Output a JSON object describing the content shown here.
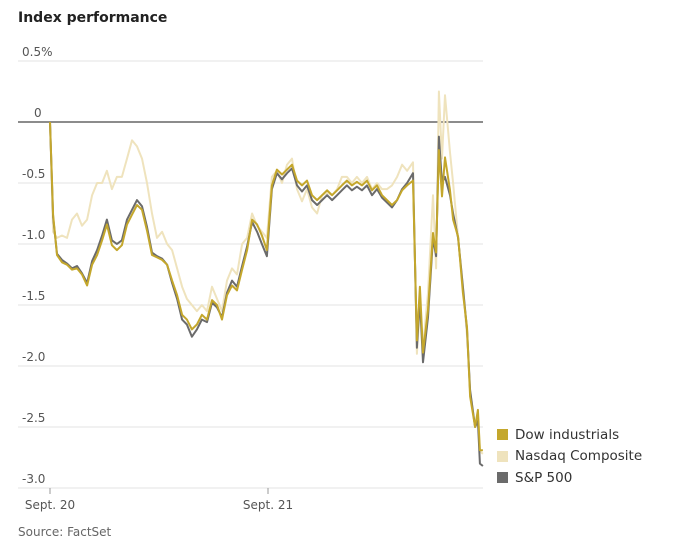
{
  "title": "Index performance",
  "source": "Source: FactSet",
  "chart_data": {
    "type": "line",
    "title": "Index performance",
    "xlabel": "",
    "ylabel": "",
    "x_unit": "trading days since Sept. 20 open",
    "x_ticks": [
      {
        "value": 0,
        "label": "Sept. 20"
      },
      {
        "value": 1,
        "label": "Sept. 21"
      }
    ],
    "y_ticks": [
      {
        "value": 0.5,
        "label": "0.5%"
      },
      {
        "value": 0,
        "label": "0"
      },
      {
        "value": -0.5,
        "label": "-0.5"
      },
      {
        "value": -1.0,
        "label": "-1.0"
      },
      {
        "value": -1.5,
        "label": "-1.5"
      },
      {
        "value": -2.0,
        "label": "-2.0"
      },
      {
        "value": -2.5,
        "label": "-2.5"
      },
      {
        "value": -3.0,
        "label": "-3.0"
      }
    ],
    "ylim": [
      -3.0,
      0.5
    ],
    "xlim": [
      -0.147,
      1.986
    ],
    "grid": true,
    "legend": "bottom-right",
    "x": [
      0,
      0.014,
      0.032,
      0.055,
      0.078,
      0.101,
      0.124,
      0.147,
      0.17,
      0.193,
      0.216,
      0.239,
      0.261,
      0.284,
      0.307,
      0.33,
      0.353,
      0.376,
      0.399,
      0.422,
      0.445,
      0.468,
      0.491,
      0.514,
      0.537,
      0.56,
      0.583,
      0.606,
      0.628,
      0.651,
      0.674,
      0.697,
      0.72,
      0.743,
      0.766,
      0.789,
      0.812,
      0.835,
      0.858,
      0.881,
      0.904,
      0.927,
      0.95,
      0.972,
      0.995,
      1.018,
      1.041,
      1.064,
      1.087,
      1.11,
      1.133,
      1.156,
      1.179,
      1.202,
      1.225,
      1.248,
      1.271,
      1.294,
      1.317,
      1.339,
      1.362,
      1.385,
      1.408,
      1.431,
      1.454,
      1.477,
      1.5,
      1.523,
      1.546,
      1.569,
      1.592,
      1.615,
      1.638,
      1.665,
      1.683,
      1.697,
      1.711,
      1.734,
      1.757,
      1.771,
      1.784,
      1.798,
      1.812,
      1.835,
      1.849,
      1.872,
      1.894,
      1.913,
      1.927,
      1.95,
      1.963,
      1.972,
      1.986
    ],
    "series": [
      {
        "name": "Nasdaq Composite",
        "color": "#efe3bd",
        "values": [
          0,
          -0.9,
          -0.95,
          -0.93,
          -0.95,
          -0.8,
          -0.75,
          -0.85,
          -0.8,
          -0.6,
          -0.5,
          -0.5,
          -0.4,
          -0.55,
          -0.45,
          -0.45,
          -0.3,
          -0.15,
          -0.2,
          -0.3,
          -0.5,
          -0.75,
          -0.95,
          -0.9,
          -1.0,
          -1.05,
          -1.2,
          -1.35,
          -1.45,
          -1.5,
          -1.55,
          -1.5,
          -1.55,
          -1.35,
          -1.45,
          -1.55,
          -1.3,
          -1.2,
          -1.25,
          -1.0,
          -0.95,
          -0.75,
          -0.85,
          -0.9,
          -0.95,
          -0.45,
          -0.4,
          -0.5,
          -0.35,
          -0.3,
          -0.55,
          -0.65,
          -0.55,
          -0.7,
          -0.75,
          -0.6,
          -0.58,
          -0.6,
          -0.55,
          -0.45,
          -0.45,
          -0.5,
          -0.45,
          -0.5,
          -0.45,
          -0.55,
          -0.5,
          -0.55,
          -0.55,
          -0.52,
          -0.45,
          -0.35,
          -0.4,
          -0.33,
          -1.9,
          -1.5,
          -1.85,
          -1.4,
          -0.6,
          -1.2,
          0.25,
          -0.3,
          0.22,
          -0.25,
          -0.5,
          -0.95,
          -1.35,
          -1.75,
          -2.2,
          -2.5,
          -2.4,
          -2.7,
          -2.72
        ]
      },
      {
        "name": "S&P 500",
        "color": "#6b6b6b",
        "values": [
          0,
          -0.78,
          -1.08,
          -1.13,
          -1.16,
          -1.2,
          -1.18,
          -1.24,
          -1.32,
          -1.14,
          -1.05,
          -0.93,
          -0.8,
          -0.97,
          -1.0,
          -0.97,
          -0.8,
          -0.72,
          -0.64,
          -0.69,
          -0.86,
          -1.07,
          -1.1,
          -1.12,
          -1.17,
          -1.32,
          -1.45,
          -1.62,
          -1.66,
          -1.76,
          -1.7,
          -1.62,
          -1.64,
          -1.48,
          -1.52,
          -1.6,
          -1.4,
          -1.3,
          -1.35,
          -1.18,
          -1.02,
          -0.82,
          -0.9,
          -1.0,
          -1.1,
          -0.55,
          -0.42,
          -0.47,
          -0.42,
          -0.38,
          -0.52,
          -0.57,
          -0.52,
          -0.64,
          -0.68,
          -0.64,
          -0.6,
          -0.64,
          -0.6,
          -0.56,
          -0.52,
          -0.56,
          -0.53,
          -0.56,
          -0.52,
          -0.6,
          -0.55,
          -0.62,
          -0.66,
          -0.7,
          -0.64,
          -0.55,
          -0.5,
          -0.42,
          -1.85,
          -1.45,
          -1.97,
          -1.6,
          -0.95,
          -1.1,
          -0.12,
          -0.5,
          -0.45,
          -0.6,
          -0.75,
          -0.95,
          -1.35,
          -1.7,
          -2.2,
          -2.5,
          -2.45,
          -2.8,
          -2.82
        ]
      },
      {
        "name": "Dow industrials",
        "color": "#c4a72c",
        "values": [
          0,
          -0.76,
          -1.09,
          -1.15,
          -1.17,
          -1.21,
          -1.2,
          -1.25,
          -1.34,
          -1.17,
          -1.09,
          -0.97,
          -0.84,
          -1.01,
          -1.05,
          -1.01,
          -0.84,
          -0.76,
          -0.68,
          -0.72,
          -0.89,
          -1.09,
          -1.11,
          -1.13,
          -1.17,
          -1.3,
          -1.42,
          -1.58,
          -1.62,
          -1.7,
          -1.66,
          -1.58,
          -1.62,
          -1.46,
          -1.5,
          -1.62,
          -1.42,
          -1.34,
          -1.38,
          -1.21,
          -1.05,
          -0.8,
          -0.84,
          -0.93,
          -1.05,
          -0.52,
          -0.39,
          -0.43,
          -0.39,
          -0.35,
          -0.48,
          -0.52,
          -0.48,
          -0.6,
          -0.64,
          -0.6,
          -0.56,
          -0.6,
          -0.56,
          -0.52,
          -0.48,
          -0.52,
          -0.49,
          -0.52,
          -0.48,
          -0.56,
          -0.52,
          -0.6,
          -0.64,
          -0.68,
          -0.64,
          -0.56,
          -0.52,
          -0.48,
          -1.79,
          -1.35,
          -1.89,
          -1.54,
          -0.91,
          -1.07,
          -0.23,
          -0.61,
          -0.29,
          -0.56,
          -0.8,
          -0.94,
          -1.4,
          -1.68,
          -2.25,
          -2.5,
          -2.36,
          -2.69,
          -2.69
        ]
      }
    ]
  },
  "legend": [
    {
      "label": "Dow industrials",
      "color": "#c4a72c"
    },
    {
      "label": "Nasdaq Composite",
      "color": "#efe3bd"
    },
    {
      "label": "S&P 500",
      "color": "#6b6b6b"
    }
  ]
}
